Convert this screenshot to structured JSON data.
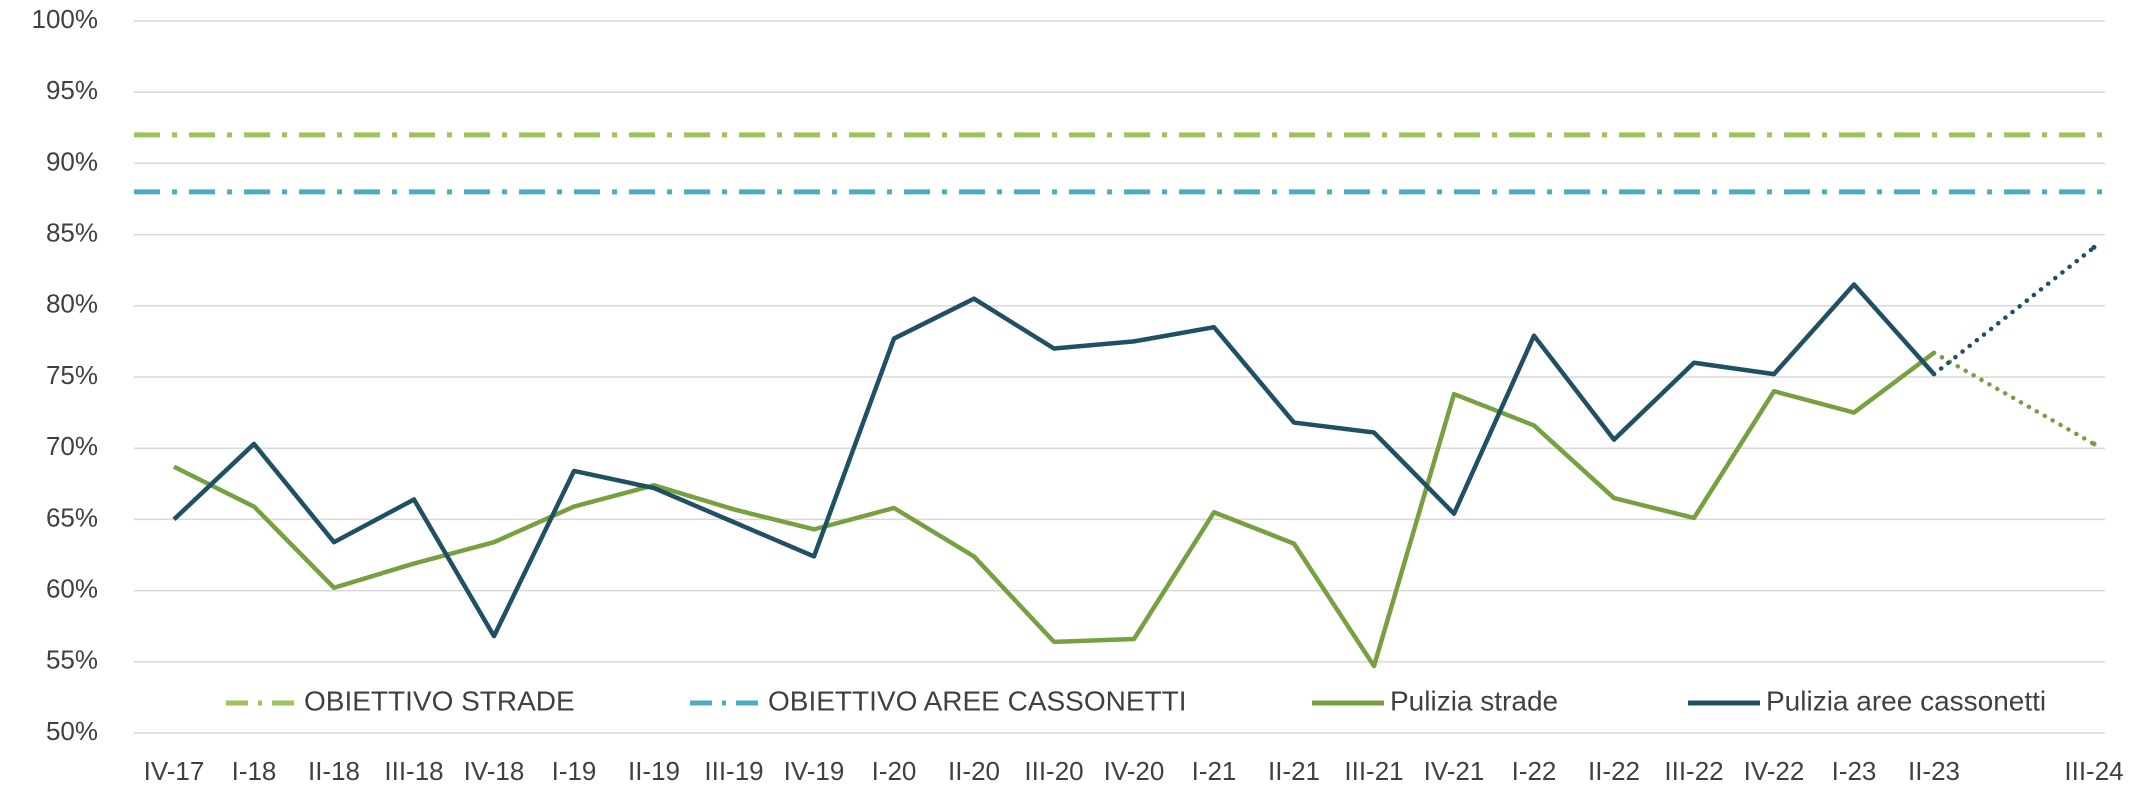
{
  "chart_data": {
    "type": "line",
    "categories": [
      "IV-17",
      "I-18",
      "II-18",
      "III-18",
      "IV-18",
      "I-19",
      "II-19",
      "III-19",
      "IV-19",
      "I-20",
      "II-20",
      "III-20",
      "IV-20",
      "I-21",
      "II-21",
      "III-21",
      "IV-21",
      "I-22",
      "II-22",
      "III-22",
      "IV-22",
      "I-23",
      "II-23",
      null,
      "III-24"
    ],
    "ylim": [
      50,
      100
    ],
    "yticks": [
      {
        "value": 50,
        "label": "50%"
      },
      {
        "value": 55,
        "label": "55%"
      },
      {
        "value": 60,
        "label": "60%"
      },
      {
        "value": 65,
        "label": "65%"
      },
      {
        "value": 70,
        "label": "70%"
      },
      {
        "value": 75,
        "label": "75%"
      },
      {
        "value": 80,
        "label": "80%"
      },
      {
        "value": 85,
        "label": "85%"
      },
      {
        "value": 90,
        "label": "90%"
      },
      {
        "value": 95,
        "label": "95%"
      },
      {
        "value": 100,
        "label": "100%"
      }
    ],
    "grid": true,
    "legend": "bottom",
    "bridge_gaps": "dotted",
    "targets": [
      {
        "name": "OBIETTIVO STRADE",
        "color": "#9dc35a",
        "value": 92
      },
      {
        "name": "OBIETTIVO AREE CASSONETTI",
        "color": "#4bacc6",
        "value": 88
      }
    ],
    "series": [
      {
        "name": "Pulizia strade",
        "color": "#77a040",
        "values": [
          68.7,
          65.9,
          60.2,
          61.9,
          63.4,
          65.9,
          67.4,
          65.7,
          64.3,
          65.8,
          62.4,
          56.4,
          56.6,
          65.5,
          63.3,
          54.7,
          73.8,
          71.6,
          66.5,
          65.1,
          74.0,
          72.5,
          76.7,
          null,
          70.3
        ]
      },
      {
        "name": "Pulizia aree cassonetti",
        "color": "#1f5064",
        "values": [
          65.0,
          70.3,
          63.4,
          66.4,
          56.8,
          68.4,
          67.2,
          64.8,
          62.4,
          77.7,
          80.5,
          77.0,
          77.5,
          78.5,
          71.8,
          71.1,
          65.4,
          77.9,
          70.6,
          76.0,
          75.2,
          81.5,
          75.2,
          null,
          84.1
        ]
      }
    ]
  }
}
